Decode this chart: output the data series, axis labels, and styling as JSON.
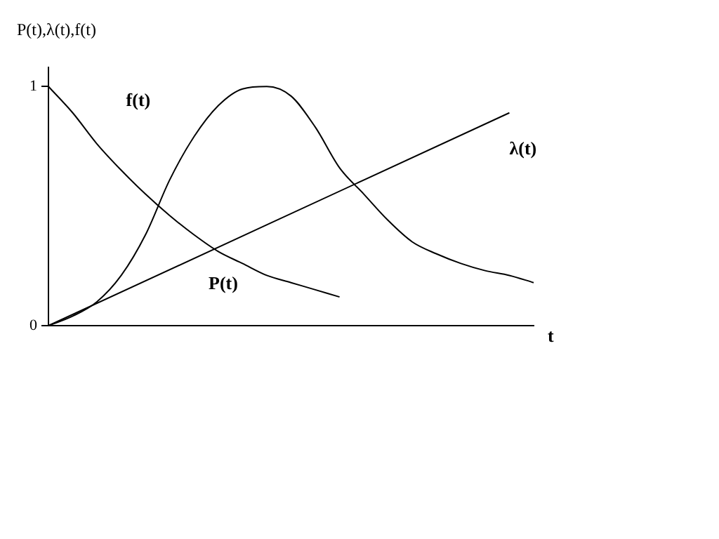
{
  "chart_data": {
    "type": "line",
    "ylabel": "P(t),λ(t),f(t)",
    "xlabel": "t",
    "categories": [
      null,
      null,
      null,
      null,
      null,
      null,
      null,
      null,
      null,
      null,
      null,
      null,
      null,
      null,
      null,
      null,
      null,
      null,
      null,
      null,
      null
    ],
    "series": [
      {
        "color": "#000000",
        "values": [
          1.0,
          0.89,
          0.76,
          0.65,
          0.55,
          0.46,
          0.38,
          0.31,
          0.26,
          0.21,
          0.18,
          0.15,
          0.12,
          null,
          null,
          null,
          null,
          null,
          null,
          null,
          null
        ]
      },
      {
        "color": "#000000",
        "values": [
          0,
          0.04,
          0.1,
          0.21,
          0.38,
          0.61,
          0.79,
          0.92,
          0.99,
          1.0,
          0.96,
          0.83,
          0.66,
          0.55,
          0.44,
          0.35,
          0.3,
          0.26,
          0.23,
          0.21,
          0.18
        ]
      },
      {
        "color": "#000000",
        "values": [
          0,
          null,
          null,
          null,
          null,
          null,
          null,
          null,
          null,
          null,
          null,
          null,
          null,
          null,
          null,
          null,
          null,
          null,
          null,
          0.89,
          null
        ]
      }
    ],
    "annotations": [
      "f(t)",
      "P(t)",
      "λ(t)"
    ],
    "ylim": [
      0,
      1.08
    ],
    "yticks": [
      0,
      1
    ],
    "tick_labels": "y",
    "grid": false,
    "legend": false,
    "marker": "none",
    "line_style": "solid"
  }
}
